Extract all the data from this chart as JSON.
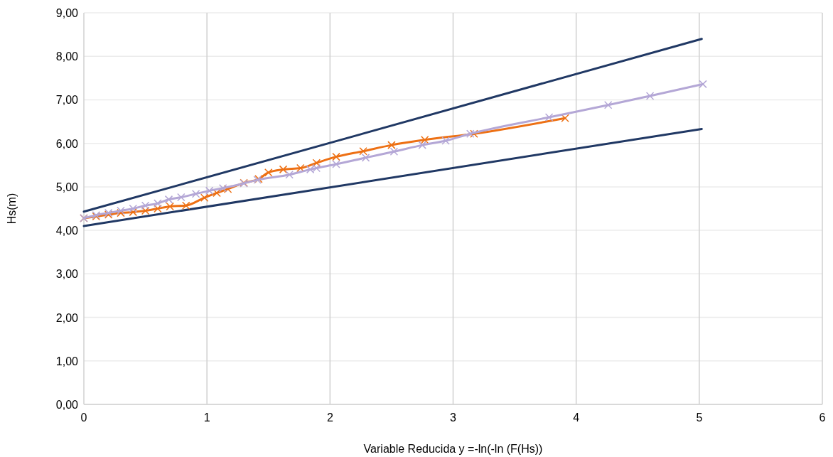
{
  "chart_data": {
    "type": "line",
    "xlabel": "Variable Reducida y =-ln(-ln (F(Hs))",
    "ylabel": "Hs(m)",
    "xlim": [
      0,
      6
    ],
    "xticks": [
      0,
      1,
      2,
      3,
      4,
      5,
      6
    ],
    "ylim": [
      0,
      9
    ],
    "yticks": [
      {
        "value": 0,
        "label": "0,00"
      },
      {
        "value": 1,
        "label": "1,00"
      },
      {
        "value": 2,
        "label": "2,00"
      },
      {
        "value": 3,
        "label": "3,00"
      },
      {
        "value": 4,
        "label": "4,00"
      },
      {
        "value": 5,
        "label": "5,00"
      },
      {
        "value": 6,
        "label": "6,00"
      },
      {
        "value": 7,
        "label": "7,00"
      },
      {
        "value": 8,
        "label": "8,00"
      },
      {
        "value": 9,
        "label": "9,00"
      }
    ],
    "grid": true,
    "series": [
      {
        "color": "#203864",
        "marker": "none",
        "x": [
          0,
          5.02
        ],
        "values": [
          4.43,
          8.4
        ]
      },
      {
        "color": "#203864",
        "marker": "none",
        "x": [
          0,
          5.02
        ],
        "values": [
          4.1,
          6.33
        ]
      },
      {
        "color": "#ed7014",
        "marker": "cross",
        "x": [
          0,
          0.1,
          0.2,
          0.3,
          0.4,
          0.5,
          0.6,
          0.7,
          0.83,
          0.98,
          1.08,
          1.17,
          1.3,
          1.42,
          1.5,
          1.62,
          1.76,
          1.89,
          2.05,
          2.27,
          2.5,
          2.77,
          3.17,
          3.91
        ],
        "values": [
          4.28,
          4.32,
          4.36,
          4.4,
          4.42,
          4.45,
          4.5,
          4.55,
          4.57,
          4.75,
          4.86,
          4.95,
          5.09,
          5.18,
          5.33,
          5.4,
          5.43,
          5.55,
          5.69,
          5.82,
          5.96,
          6.08,
          6.22,
          6.58
        ]
      },
      {
        "color": "#b4a7d6",
        "marker": "cross",
        "x": [
          0,
          0.1,
          0.2,
          0.3,
          0.4,
          0.5,
          0.6,
          0.69,
          0.79,
          0.91,
          1.02,
          1.13,
          1.3,
          1.41,
          1.67,
          1.84,
          1.89,
          2.05,
          2.29,
          2.52,
          2.75,
          2.94,
          3.14,
          3.78,
          4.26,
          4.6,
          5.03
        ],
        "values": [
          4.28,
          4.35,
          4.4,
          4.45,
          4.5,
          4.57,
          4.62,
          4.71,
          4.76,
          4.84,
          4.91,
          4.97,
          5.08,
          5.16,
          5.28,
          5.4,
          5.43,
          5.52,
          5.67,
          5.81,
          5.96,
          6.06,
          6.22,
          6.6,
          6.88,
          7.09,
          7.36
        ]
      }
    ]
  }
}
